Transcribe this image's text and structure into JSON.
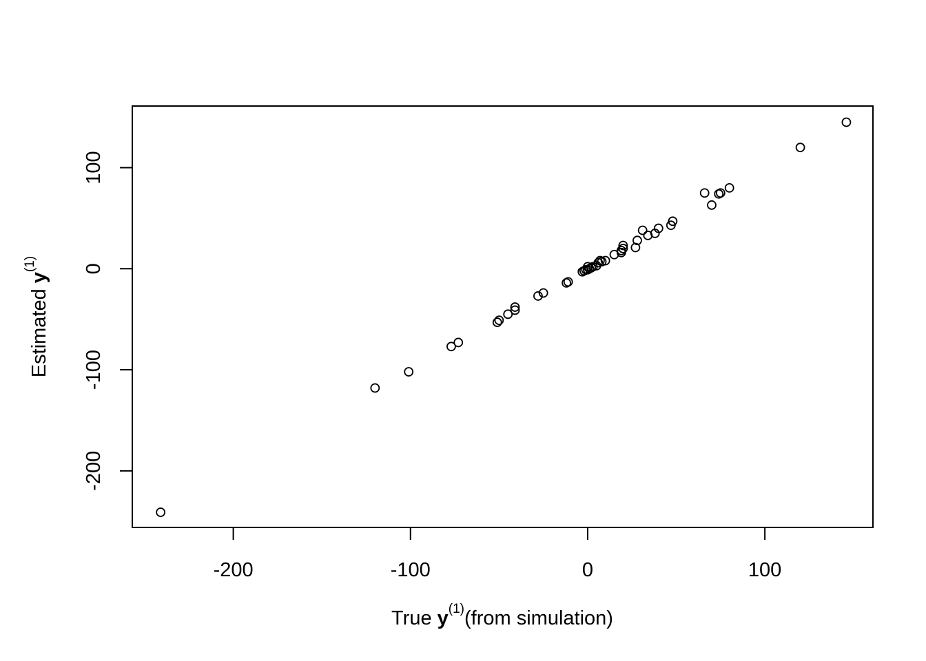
{
  "chart_data": {
    "type": "scatter",
    "title": "",
    "xlabel": {
      "prefix": "True ",
      "bold": "y",
      "superscript": "(1)",
      "suffix": "(from simulation)"
    },
    "ylabel": {
      "prefix": "Estimated ",
      "bold": "y",
      "superscript": "(1)",
      "suffix": ""
    },
    "xlim": [
      -257,
      161
    ],
    "ylim": [
      -256,
      161
    ],
    "xticks": [
      -200,
      -100,
      0,
      100
    ],
    "xtick_labels": [
      "-200",
      "-100",
      "0",
      "100"
    ],
    "yticks": [
      -200,
      -100,
      0,
      100
    ],
    "ytick_labels": [
      "-200",
      "-100",
      "0",
      "100"
    ],
    "grid": false,
    "marker": "open-circle",
    "series": [
      {
        "points": [
          [
            -241,
            -241
          ],
          [
            -120,
            -118
          ],
          [
            -101,
            -102
          ],
          [
            -77,
            -77
          ],
          [
            -73,
            -73
          ],
          [
            -51,
            -53
          ],
          [
            -50,
            -51
          ],
          [
            -45,
            -45
          ],
          [
            -41,
            -41
          ],
          [
            -41,
            -38
          ],
          [
            -28,
            -27
          ],
          [
            -25,
            -24
          ],
          [
            -12,
            -14
          ],
          [
            -11,
            -13
          ],
          [
            -3,
            -3
          ],
          [
            -2,
            -2
          ],
          [
            -1,
            -1
          ],
          [
            0,
            -1
          ],
          [
            0,
            2
          ],
          [
            1,
            0
          ],
          [
            2,
            1
          ],
          [
            3,
            2
          ],
          [
            5,
            3
          ],
          [
            6,
            6
          ],
          [
            7,
            8
          ],
          [
            8,
            7
          ],
          [
            10,
            8
          ],
          [
            15,
            14
          ],
          [
            19,
            16
          ],
          [
            19,
            18
          ],
          [
            20,
            20
          ],
          [
            20,
            23
          ],
          [
            27,
            21
          ],
          [
            28,
            28
          ],
          [
            31,
            38
          ],
          [
            34,
            33
          ],
          [
            38,
            35
          ],
          [
            40,
            40
          ],
          [
            47,
            43
          ],
          [
            48,
            47
          ],
          [
            66,
            75
          ],
          [
            70,
            63
          ],
          [
            74,
            74
          ],
          [
            75,
            75
          ],
          [
            80,
            80
          ],
          [
            120,
            120
          ],
          [
            146,
            145
          ]
        ]
      }
    ]
  }
}
